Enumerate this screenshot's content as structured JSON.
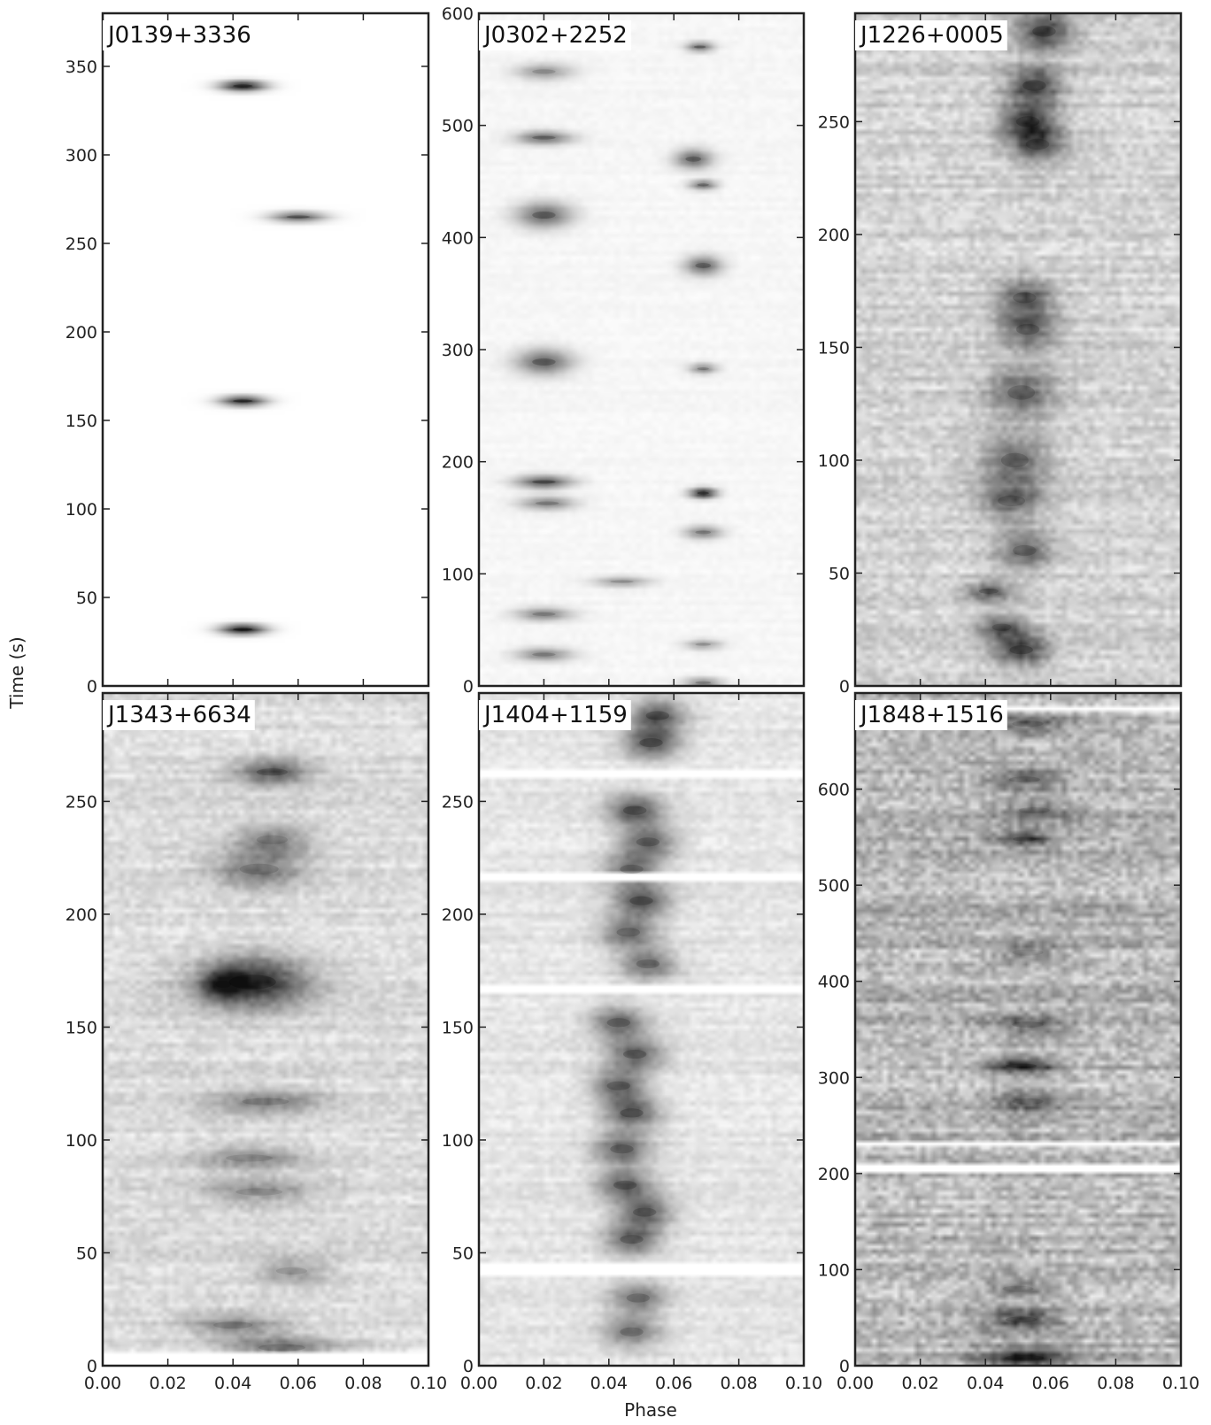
{
  "figure": {
    "xlabel": "Phase",
    "ylabel": "Time (s)"
  },
  "chart_data": [
    {
      "type": "heatmap",
      "title": "J0139+3336",
      "xlim": [
        0.0,
        0.1
      ],
      "ylim": [
        0,
        380
      ],
      "xticks": [
        "0.00",
        "0.02",
        "0.04",
        "0.06",
        "0.08",
        "0.10"
      ],
      "yticks": [
        0,
        50,
        100,
        150,
        200,
        250,
        300,
        350
      ],
      "noise": 0,
      "pulses": [
        {
          "t": 32,
          "phase": 0.043,
          "amp": 1.0,
          "dt": 2,
          "dphase": 0.005
        },
        {
          "t": 161,
          "phase": 0.043,
          "amp": 0.9,
          "dt": 2,
          "dphase": 0.005
        },
        {
          "t": 265,
          "phase": 0.06,
          "amp": 0.7,
          "dt": 2,
          "dphase": 0.006
        },
        {
          "t": 339,
          "phase": 0.043,
          "amp": 1.0,
          "dt": 2,
          "dphase": 0.005
        }
      ],
      "gaps": []
    },
    {
      "type": "heatmap",
      "title": "J0302+2252",
      "xlim": [
        0.0,
        0.1
      ],
      "ylim": [
        0,
        600
      ],
      "xticks": [
        "0.00",
        "0.02",
        "0.04",
        "0.06",
        "0.08",
        "0.10"
      ],
      "yticks": [
        0,
        100,
        200,
        300,
        400,
        500,
        600
      ],
      "noise": 0.05,
      "pulses": [
        {
          "t": 548,
          "phase": 0.02,
          "amp": 0.4,
          "dt": 5,
          "dphase": 0.006
        },
        {
          "t": 489,
          "phase": 0.02,
          "amp": 0.6,
          "dt": 4,
          "dphase": 0.006
        },
        {
          "t": 420,
          "phase": 0.02,
          "amp": 0.6,
          "dt": 8,
          "dphase": 0.006
        },
        {
          "t": 289,
          "phase": 0.02,
          "amp": 0.6,
          "dt": 8,
          "dphase": 0.006
        },
        {
          "t": 182,
          "phase": 0.02,
          "amp": 0.7,
          "dt": 4,
          "dphase": 0.006
        },
        {
          "t": 163,
          "phase": 0.021,
          "amp": 0.5,
          "dt": 4,
          "dphase": 0.006
        },
        {
          "t": 64,
          "phase": 0.02,
          "amp": 0.5,
          "dt": 4,
          "dphase": 0.006
        },
        {
          "t": 28,
          "phase": 0.02,
          "amp": 0.5,
          "dt": 4,
          "dphase": 0.006
        },
        {
          "t": 93,
          "phase": 0.044,
          "amp": 0.4,
          "dt": 3,
          "dphase": 0.006
        },
        {
          "t": 570,
          "phase": 0.068,
          "amp": 0.6,
          "dt": 3,
          "dphase": 0.003
        },
        {
          "t": 470,
          "phase": 0.066,
          "amp": 0.6,
          "dt": 6,
          "dphase": 0.004
        },
        {
          "t": 447,
          "phase": 0.069,
          "amp": 0.6,
          "dt": 3,
          "dphase": 0.003
        },
        {
          "t": 375,
          "phase": 0.069,
          "amp": 0.6,
          "dt": 6,
          "dphase": 0.004
        },
        {
          "t": 283,
          "phase": 0.069,
          "amp": 0.5,
          "dt": 3,
          "dphase": 0.003
        },
        {
          "t": 172,
          "phase": 0.069,
          "amp": 0.95,
          "dt": 3,
          "dphase": 0.003
        },
        {
          "t": 137,
          "phase": 0.069,
          "amp": 0.5,
          "dt": 4,
          "dphase": 0.004
        },
        {
          "t": 37,
          "phase": 0.069,
          "amp": 0.4,
          "dt": 3,
          "dphase": 0.004
        },
        {
          "t": 3,
          "phase": 0.069,
          "amp": 0.5,
          "dt": 3,
          "dphase": 0.004
        }
      ],
      "gaps": []
    },
    {
      "type": "heatmap",
      "title": "J1226+0005",
      "xlim": [
        0.0,
        0.1
      ],
      "ylim": [
        0,
        298
      ],
      "xticks": [
        "0.00",
        "0.02",
        "0.04",
        "0.06",
        "0.08",
        "0.10"
      ],
      "yticks": [
        0,
        50,
        100,
        150,
        200,
        250
      ],
      "noise": 0.28,
      "pulses": [
        {
          "t": 290,
          "phase": 0.058,
          "amp": 0.6,
          "dt": 6,
          "dphase": 0.006
        },
        {
          "t": 266,
          "phase": 0.055,
          "amp": 0.6,
          "dt": 6,
          "dphase": 0.006
        },
        {
          "t": 250,
          "phase": 0.053,
          "amp": 0.6,
          "dt": 6,
          "dphase": 0.006
        },
        {
          "t": 240,
          "phase": 0.056,
          "amp": 0.5,
          "dt": 6,
          "dphase": 0.006
        },
        {
          "t": 172,
          "phase": 0.052,
          "amp": 0.5,
          "dt": 6,
          "dphase": 0.006
        },
        {
          "t": 158,
          "phase": 0.053,
          "amp": 0.5,
          "dt": 6,
          "dphase": 0.006
        },
        {
          "t": 130,
          "phase": 0.051,
          "amp": 0.45,
          "dt": 8,
          "dphase": 0.007
        },
        {
          "t": 100,
          "phase": 0.049,
          "amp": 0.45,
          "dt": 8,
          "dphase": 0.007
        },
        {
          "t": 82,
          "phase": 0.048,
          "amp": 0.45,
          "dt": 6,
          "dphase": 0.007
        },
        {
          "t": 60,
          "phase": 0.052,
          "amp": 0.45,
          "dt": 6,
          "dphase": 0.006
        },
        {
          "t": 42,
          "phase": 0.041,
          "amp": 0.5,
          "dt": 3,
          "dphase": 0.005
        },
        {
          "t": 26,
          "phase": 0.045,
          "amp": 0.5,
          "dt": 4,
          "dphase": 0.005
        },
        {
          "t": 16,
          "phase": 0.051,
          "amp": 0.6,
          "dt": 5,
          "dphase": 0.006
        }
      ],
      "gaps": []
    },
    {
      "type": "heatmap",
      "title": "J1343+6634",
      "xlim": [
        0.0,
        0.1
      ],
      "ylim": [
        0,
        298
      ],
      "xticks": [
        "0.00",
        "0.02",
        "0.04",
        "0.06",
        "0.08",
        "0.10"
      ],
      "yticks": [
        0,
        50,
        100,
        150,
        200,
        250
      ],
      "noise": 0.22,
      "pulses": [
        {
          "t": 263,
          "phase": 0.052,
          "amp": 0.55,
          "dt": 4,
          "dphase": 0.008
        },
        {
          "t": 233,
          "phase": 0.052,
          "amp": 0.35,
          "dt": 5,
          "dphase": 0.008
        },
        {
          "t": 220,
          "phase": 0.048,
          "amp": 0.4,
          "dt": 6,
          "dphase": 0.01
        },
        {
          "t": 170,
          "phase": 0.046,
          "amp": 0.75,
          "dt": 8,
          "dphase": 0.012
        },
        {
          "t": 169,
          "phase": 0.037,
          "amp": 0.55,
          "dt": 4,
          "dphase": 0.004
        },
        {
          "t": 117,
          "phase": 0.05,
          "amp": 0.35,
          "dt": 4,
          "dphase": 0.012
        },
        {
          "t": 92,
          "phase": 0.045,
          "amp": 0.3,
          "dt": 4,
          "dphase": 0.012
        },
        {
          "t": 77,
          "phase": 0.048,
          "amp": 0.3,
          "dt": 4,
          "dphase": 0.012
        },
        {
          "t": 42,
          "phase": 0.058,
          "amp": 0.3,
          "dt": 4,
          "dphase": 0.008
        },
        {
          "t": 18,
          "phase": 0.04,
          "amp": 0.35,
          "dt": 4,
          "dphase": 0.01
        },
        {
          "t": 8,
          "phase": 0.055,
          "amp": 0.4,
          "dt": 4,
          "dphase": 0.012
        }
      ],
      "gaps": [
        [
          0,
          5
        ]
      ]
    },
    {
      "type": "heatmap",
      "title": "J1404+1159",
      "xlim": [
        0.0,
        0.1
      ],
      "ylim": [
        0,
        298
      ],
      "xticks": [
        "0.00",
        "0.02",
        "0.04",
        "0.06",
        "0.08",
        "0.10"
      ],
      "yticks": [
        0,
        50,
        100,
        150,
        200,
        250
      ],
      "noise": 0.16,
      "pulses": [
        {
          "t": 288,
          "phase": 0.055,
          "amp": 0.6,
          "dt": 5,
          "dphase": 0.006
        },
        {
          "t": 276,
          "phase": 0.053,
          "amp": 0.6,
          "dt": 5,
          "dphase": 0.006
        },
        {
          "t": 246,
          "phase": 0.048,
          "amp": 0.6,
          "dt": 5,
          "dphase": 0.006
        },
        {
          "t": 232,
          "phase": 0.052,
          "amp": 0.55,
          "dt": 5,
          "dphase": 0.006
        },
        {
          "t": 220,
          "phase": 0.047,
          "amp": 0.5,
          "dt": 5,
          "dphase": 0.006
        },
        {
          "t": 206,
          "phase": 0.05,
          "amp": 0.6,
          "dt": 5,
          "dphase": 0.006
        },
        {
          "t": 192,
          "phase": 0.046,
          "amp": 0.5,
          "dt": 5,
          "dphase": 0.006
        },
        {
          "t": 178,
          "phase": 0.052,
          "amp": 0.5,
          "dt": 5,
          "dphase": 0.006
        },
        {
          "t": 152,
          "phase": 0.043,
          "amp": 0.55,
          "dt": 5,
          "dphase": 0.006
        },
        {
          "t": 138,
          "phase": 0.048,
          "amp": 0.55,
          "dt": 5,
          "dphase": 0.006
        },
        {
          "t": 124,
          "phase": 0.043,
          "amp": 0.55,
          "dt": 5,
          "dphase": 0.006
        },
        {
          "t": 112,
          "phase": 0.047,
          "amp": 0.6,
          "dt": 5,
          "dphase": 0.006
        },
        {
          "t": 96,
          "phase": 0.044,
          "amp": 0.55,
          "dt": 5,
          "dphase": 0.006
        },
        {
          "t": 80,
          "phase": 0.045,
          "amp": 0.55,
          "dt": 5,
          "dphase": 0.006
        },
        {
          "t": 68,
          "phase": 0.051,
          "amp": 0.55,
          "dt": 5,
          "dphase": 0.006
        },
        {
          "t": 56,
          "phase": 0.047,
          "amp": 0.55,
          "dt": 5,
          "dphase": 0.006
        },
        {
          "t": 30,
          "phase": 0.049,
          "amp": 0.45,
          "dt": 5,
          "dphase": 0.006
        },
        {
          "t": 15,
          "phase": 0.047,
          "amp": 0.45,
          "dt": 5,
          "dphase": 0.006
        }
      ],
      "gaps": [
        [
          40,
          45
        ],
        [
          164,
          168
        ],
        [
          214,
          218
        ],
        [
          261,
          265
        ]
      ]
    },
    {
      "type": "heatmap",
      "title": "J1848+1516",
      "xlim": [
        0.0,
        0.1
      ],
      "ylim": [
        0,
        700
      ],
      "xticks": [
        "0.00",
        "0.02",
        "0.04",
        "0.06",
        "0.08",
        "0.10"
      ],
      "yticks": [
        0,
        100,
        200,
        300,
        400,
        500,
        600
      ],
      "noise": 0.45,
      "pulses": [
        {
          "t": 668,
          "phase": 0.053,
          "amp": 0.35,
          "dt": 8,
          "dphase": 0.008
        },
        {
          "t": 610,
          "phase": 0.052,
          "amp": 0.35,
          "dt": 8,
          "dphase": 0.008
        },
        {
          "t": 578,
          "phase": 0.055,
          "amp": 0.3,
          "dt": 8,
          "dphase": 0.008
        },
        {
          "t": 548,
          "phase": 0.052,
          "amp": 0.45,
          "dt": 6,
          "dphase": 0.006
        },
        {
          "t": 430,
          "phase": 0.053,
          "amp": 0.25,
          "dt": 8,
          "dphase": 0.008
        },
        {
          "t": 355,
          "phase": 0.053,
          "amp": 0.35,
          "dt": 8,
          "dphase": 0.008
        },
        {
          "t": 312,
          "phase": 0.051,
          "amp": 0.65,
          "dt": 6,
          "dphase": 0.008
        },
        {
          "t": 275,
          "phase": 0.053,
          "amp": 0.35,
          "dt": 8,
          "dphase": 0.008
        },
        {
          "t": 80,
          "phase": 0.05,
          "amp": 0.3,
          "dt": 8,
          "dphase": 0.008
        },
        {
          "t": 48,
          "phase": 0.051,
          "amp": 0.5,
          "dt": 8,
          "dphase": 0.008
        },
        {
          "t": 8,
          "phase": 0.052,
          "amp": 0.55,
          "dt": 8,
          "dphase": 0.01
        }
      ],
      "gaps": [
        [
          682,
          685
        ],
        [
          600,
          603
        ],
        [
          560,
          562
        ],
        [
          512,
          514
        ],
        [
          447,
          449
        ],
        [
          400,
          402
        ],
        [
          330,
          332
        ],
        [
          230,
          232
        ],
        [
          202,
          208
        ],
        [
          120,
          123
        ]
      ]
    }
  ]
}
